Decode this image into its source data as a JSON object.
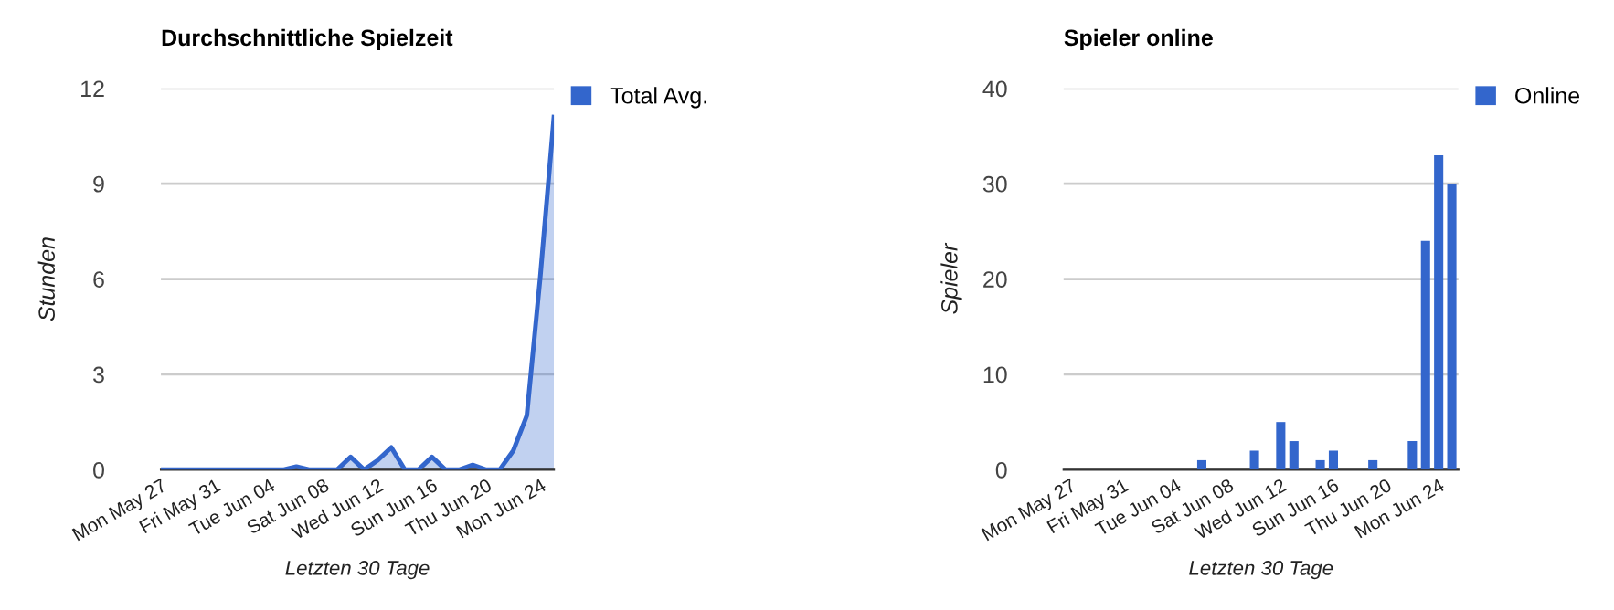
{
  "chart_data": [
    {
      "type": "area",
      "title": "Durchschnittliche Spielzeit",
      "xlabel": "Letzten 30 Tage",
      "ylabel": "Stunden",
      "categories": [
        "Mon May 27",
        null,
        null,
        null,
        "Fri May 31",
        null,
        null,
        null,
        "Tue Jun 04",
        null,
        null,
        null,
        "Sat Jun 08",
        null,
        null,
        null,
        "Wed Jun 12",
        null,
        null,
        null,
        "Sun Jun 16",
        null,
        null,
        null,
        "Thu Jun 20",
        null,
        null,
        null,
        "Mon Jun 24",
        null
      ],
      "series": [
        {
          "name": "Total Avg.",
          "color": "#3366cc",
          "values": [
            0,
            0,
            0,
            0,
            0,
            0,
            0,
            0,
            0,
            0,
            0.1,
            0,
            0,
            0,
            0.4,
            0,
            0.3,
            0.7,
            0,
            0,
            0.4,
            0,
            0,
            0.15,
            0,
            0,
            0.6,
            1.7,
            6.1,
            11.1
          ]
        }
      ],
      "ylim": [
        0,
        12
      ],
      "yticks": [
        0,
        3,
        6,
        9,
        12
      ],
      "grid": "y",
      "legend": "top right",
      "marker": "none",
      "line_style": "solid"
    },
    {
      "type": "bar",
      "title": "Spieler online",
      "xlabel": "Letzten 30 Tage",
      "ylabel": "Spieler",
      "categories": [
        "Mon May 27",
        null,
        null,
        null,
        "Fri May 31",
        null,
        null,
        null,
        "Tue Jun 04",
        null,
        null,
        null,
        "Sat Jun 08",
        null,
        null,
        null,
        "Wed Jun 12",
        null,
        null,
        null,
        "Sun Jun 16",
        null,
        null,
        null,
        "Thu Jun 20",
        null,
        null,
        null,
        "Mon Jun 24",
        null
      ],
      "series": [
        {
          "name": "Online",
          "color": "#3366cc",
          "values": [
            0,
            0,
            0,
            0,
            0,
            0,
            0,
            0,
            0,
            0,
            1,
            0,
            0,
            0,
            2,
            0,
            5,
            3,
            0,
            1,
            2,
            0,
            0,
            1,
            0,
            0,
            3,
            24,
            33,
            30
          ]
        }
      ],
      "ylim": [
        0,
        40
      ],
      "yticks": [
        0,
        10,
        20,
        30,
        40
      ],
      "grid": "y",
      "legend": "top right"
    }
  ]
}
